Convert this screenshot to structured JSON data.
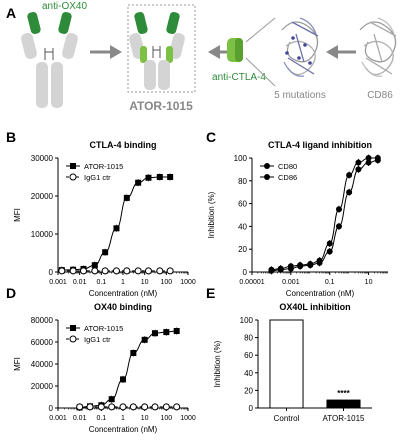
{
  "panel_a": {
    "letter": "A",
    "anti_ox40": "anti-OX40",
    "anti_ctla4": "anti-CTLA-4",
    "product": "ATOR-1015",
    "mutations": "5 mutations",
    "cd86": "CD86",
    "colors": {
      "dark_green": "#2e8b3a",
      "light_green": "#7cc143",
      "antibody_grey": "#d4d4d4",
      "arrow_grey": "#888888",
      "label_green": "#2e8b3a"
    }
  },
  "panel_letters": {
    "b": "B",
    "c": "C",
    "d": "D",
    "e": "E"
  },
  "chart_data": [
    {
      "id": "B",
      "type": "line",
      "title": "CTLA-4 binding",
      "xlabel": "Concentration (nM)",
      "ylabel": "MFI",
      "xscale": "log",
      "xlim": [
        0.001,
        1000
      ],
      "ylim": [
        0,
        30000
      ],
      "xticks": [
        "0.001",
        "0.01",
        "0.1",
        "1",
        "10",
        "100",
        "1000"
      ],
      "yticks": [
        "0",
        "10000",
        "20000",
        "30000"
      ],
      "legend_position": "top-left",
      "series": [
        {
          "name": "ATOR-1015",
          "marker": "filled-square",
          "line": "fit",
          "x": [
            0.0015,
            0.005,
            0.015,
            0.05,
            0.15,
            0.5,
            1.5,
            5,
            15,
            50,
            150
          ],
          "y": [
            500,
            600,
            800,
            1800,
            5200,
            11500,
            19500,
            23500,
            24800,
            25000,
            25000
          ]
        },
        {
          "name": "IgG1 ctr",
          "marker": "open-circle",
          "line": "dashed",
          "x": [
            0.0015,
            0.005,
            0.015,
            0.05,
            0.15,
            0.5,
            1.5,
            5,
            15,
            50,
            150
          ],
          "y": [
            300,
            300,
            300,
            300,
            300,
            300,
            300,
            300,
            300,
            300,
            300
          ]
        }
      ]
    },
    {
      "id": "C",
      "type": "line",
      "title": "CTLA-4 ligand inhibition",
      "xlabel": "Concentration (nM)",
      "ylabel": "Inhibition (%)",
      "xscale": "log",
      "xlim": [
        1e-05,
        100
      ],
      "ylim": [
        0,
        100
      ],
      "xticks": [
        "0.00001",
        "0.001",
        "0.1",
        "10"
      ],
      "yticks": [
        "0",
        "20",
        "40",
        "60",
        "80",
        "100"
      ],
      "legend_position": "top-left",
      "series": [
        {
          "name": "CD80",
          "marker": "filled-circle",
          "x": [
            0.0001,
            0.0003,
            0.001,
            0.003,
            0.01,
            0.03,
            0.1,
            0.3,
            1,
            3,
            10,
            30
          ],
          "y": [
            2,
            3,
            5,
            6,
            7,
            10,
            25,
            55,
            85,
            96,
            100,
            100
          ]
        },
        {
          "name": "CD86",
          "marker": "filled-circle",
          "x": [
            0.0001,
            0.0003,
            0.001,
            0.003,
            0.01,
            0.03,
            0.1,
            0.3,
            1,
            3,
            10,
            30
          ],
          "y": [
            1,
            2,
            3,
            5,
            6,
            8,
            18,
            40,
            70,
            90,
            96,
            98
          ]
        }
      ]
    },
    {
      "id": "D",
      "type": "line",
      "title": "OX40 binding",
      "xlabel": "Concentration (nM)",
      "ylabel": "MFI",
      "xscale": "log",
      "xlim": [
        0.001,
        1000
      ],
      "ylim": [
        0,
        80000
      ],
      "xticks": [
        "0.001",
        "0.01",
        "0.1",
        "1",
        "10",
        "100",
        "1000"
      ],
      "yticks": [
        "0",
        "20000",
        "40000",
        "60000",
        "80000"
      ],
      "legend_position": "top-left",
      "series": [
        {
          "name": "ATOR-1015",
          "marker": "filled-square",
          "line": "fit",
          "x": [
            0.01,
            0.03,
            0.1,
            0.3,
            1,
            3,
            10,
            30,
            100,
            300
          ],
          "y": [
            500,
            1500,
            2500,
            8000,
            26000,
            50000,
            62000,
            68000,
            69000,
            70000
          ]
        },
        {
          "name": "IgG1 ctr",
          "marker": "open-circle",
          "line": "dashed",
          "x": [
            0.01,
            0.03,
            0.1,
            0.3,
            1,
            3,
            10,
            30,
            100,
            300
          ],
          "y": [
            1000,
            1000,
            1000,
            1000,
            1000,
            1000,
            1000,
            1000,
            1000,
            1000
          ]
        }
      ]
    },
    {
      "id": "E",
      "type": "bar",
      "title": "OX40L inhibition",
      "ylabel": "Inhibition (%)",
      "ylim": [
        0,
        100
      ],
      "yticks": [
        "0",
        "20",
        "40",
        "60",
        "80",
        "100"
      ],
      "categories": [
        "Control",
        "ATOR-1015"
      ],
      "values": [
        100,
        9
      ],
      "bar_colors": [
        "#ffffff",
        "#000000"
      ],
      "annotation": "****"
    }
  ]
}
